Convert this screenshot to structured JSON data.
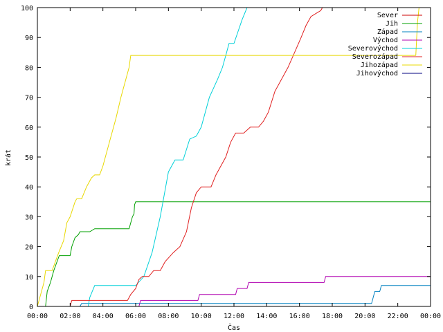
{
  "chart_data": {
    "type": "line",
    "title": "",
    "xlabel": "Čas",
    "ylabel": "krát",
    "xlim": [
      "00:00",
      "24:00"
    ],
    "ylim": [
      0,
      100
    ],
    "grid": false,
    "legend_placement": "top-right",
    "x_ticks": [
      "00:00",
      "02:00",
      "04:00",
      "06:00",
      "08:00",
      "10:00",
      "12:00",
      "14:00",
      "16:00",
      "18:00",
      "20:00",
      "22:00",
      "00:00"
    ],
    "y_ticks": [
      "0",
      "10",
      "20",
      "30",
      "40",
      "50",
      "60",
      "70",
      "80",
      "90",
      "100"
    ],
    "series": [
      {
        "name": "Sever",
        "color": "#cc0000",
        "points": [
          [
            "00:00",
            0
          ],
          [
            "24:00",
            0
          ]
        ]
      },
      {
        "name": "Jih",
        "color": "#00a000",
        "points": [
          [
            "00:00",
            0
          ],
          [
            "00:30",
            0
          ],
          [
            "00:36",
            5
          ],
          [
            "00:48",
            8
          ],
          [
            "01:00",
            12
          ],
          [
            "01:12",
            15
          ],
          [
            "01:20",
            17
          ],
          [
            "02:00",
            17
          ],
          [
            "02:06",
            20
          ],
          [
            "02:18",
            23
          ],
          [
            "02:30",
            24
          ],
          [
            "02:36",
            25
          ],
          [
            "03:12",
            25
          ],
          [
            "03:30",
            26
          ],
          [
            "05:36",
            26
          ],
          [
            "05:48",
            30
          ],
          [
            "05:54",
            31
          ],
          [
            "05:56",
            34
          ],
          [
            "06:00",
            35
          ],
          [
            "24:00",
            35
          ]
        ]
      },
      {
        "name": "Západ",
        "color": "#0080c0",
        "points": [
          [
            "00:00",
            0
          ],
          [
            "02:36",
            0
          ],
          [
            "02:42",
            1
          ],
          [
            "20:24",
            1
          ],
          [
            "20:36",
            5
          ],
          [
            "20:54",
            5
          ],
          [
            "21:00",
            7
          ],
          [
            "24:00",
            7
          ]
        ]
      },
      {
        "name": "Východ",
        "color": "#b000b0",
        "points": [
          [
            "00:00",
            0
          ],
          [
            "06:12",
            0
          ],
          [
            "06:18",
            2
          ],
          [
            "09:48",
            2
          ],
          [
            "09:54",
            4
          ],
          [
            "12:06",
            4
          ],
          [
            "12:12",
            6
          ],
          [
            "12:48",
            6
          ],
          [
            "12:54",
            8
          ],
          [
            "17:30",
            8
          ],
          [
            "17:36",
            10
          ],
          [
            "24:00",
            10
          ]
        ]
      },
      {
        "name": "Severovýchod",
        "color": "#00d0d8",
        "points": [
          [
            "00:00",
            0
          ],
          [
            "03:06",
            0
          ],
          [
            "03:12",
            3
          ],
          [
            "03:30",
            7
          ],
          [
            "06:00",
            7
          ],
          [
            "06:30",
            10
          ],
          [
            "07:00",
            18
          ],
          [
            "07:30",
            30
          ],
          [
            "08:00",
            45
          ],
          [
            "08:24",
            49
          ],
          [
            "08:54",
            49
          ],
          [
            "09:18",
            56
          ],
          [
            "09:42",
            57
          ],
          [
            "10:00",
            60
          ],
          [
            "10:30",
            70
          ],
          [
            "11:00",
            76
          ],
          [
            "11:18",
            80
          ],
          [
            "11:30",
            84
          ],
          [
            "11:42",
            88
          ],
          [
            "12:00",
            88
          ],
          [
            "12:30",
            96
          ],
          [
            "12:48",
            100
          ],
          [
            "13:00",
            100
          ]
        ]
      },
      {
        "name": "Severozápad",
        "color": "#e02020",
        "points": [
          [
            "00:00",
            0
          ],
          [
            "02:00",
            0
          ],
          [
            "02:06",
            2
          ],
          [
            "05:30",
            2
          ],
          [
            "05:42",
            4
          ],
          [
            "06:00",
            6
          ],
          [
            "06:12",
            9
          ],
          [
            "06:24",
            10
          ],
          [
            "06:48",
            10
          ],
          [
            "07:06",
            12
          ],
          [
            "07:30",
            12
          ],
          [
            "07:48",
            15
          ],
          [
            "08:18",
            18
          ],
          [
            "08:42",
            20
          ],
          [
            "09:06",
            25
          ],
          [
            "09:24",
            33
          ],
          [
            "09:42",
            38
          ],
          [
            "10:00",
            40
          ],
          [
            "10:36",
            40
          ],
          [
            "10:54",
            44
          ],
          [
            "11:30",
            50
          ],
          [
            "11:48",
            55
          ],
          [
            "12:06",
            58
          ],
          [
            "12:36",
            58
          ],
          [
            "13:00",
            60
          ],
          [
            "13:30",
            60
          ],
          [
            "13:48",
            62
          ],
          [
            "14:06",
            65
          ],
          [
            "14:30",
            72
          ],
          [
            "14:48",
            75
          ],
          [
            "15:18",
            80
          ],
          [
            "15:42",
            85
          ],
          [
            "16:06",
            90
          ],
          [
            "16:24",
            94
          ],
          [
            "16:42",
            97
          ],
          [
            "17:00",
            98
          ],
          [
            "17:18",
            99
          ],
          [
            "17:24",
            100
          ],
          [
            "17:30",
            100
          ]
        ]
      },
      {
        "name": "Jihozápad",
        "color": "#e8d800",
        "points": [
          [
            "00:00",
            0
          ],
          [
            "00:24",
            8
          ],
          [
            "00:30",
            12
          ],
          [
            "00:54",
            12
          ],
          [
            "01:06",
            15
          ],
          [
            "01:18",
            18
          ],
          [
            "01:36",
            22
          ],
          [
            "01:48",
            28
          ],
          [
            "02:00",
            30
          ],
          [
            "02:18",
            35
          ],
          [
            "02:24",
            36
          ],
          [
            "02:42",
            36
          ],
          [
            "03:00",
            40
          ],
          [
            "03:18",
            43
          ],
          [
            "03:30",
            44
          ],
          [
            "03:48",
            44
          ],
          [
            "04:00",
            47
          ],
          [
            "04:24",
            55
          ],
          [
            "04:48",
            63
          ],
          [
            "05:06",
            70
          ],
          [
            "05:24",
            76
          ],
          [
            "05:36",
            80
          ],
          [
            "05:42",
            84
          ],
          [
            "23:06",
            84
          ],
          [
            "23:12",
            95
          ],
          [
            "23:18",
            100
          ],
          [
            "24:00",
            100
          ]
        ]
      },
      {
        "name": "Jihovýchod",
        "color": "#000080",
        "points": [
          [
            "00:00",
            0
          ],
          [
            "24:00",
            0
          ]
        ]
      }
    ]
  }
}
